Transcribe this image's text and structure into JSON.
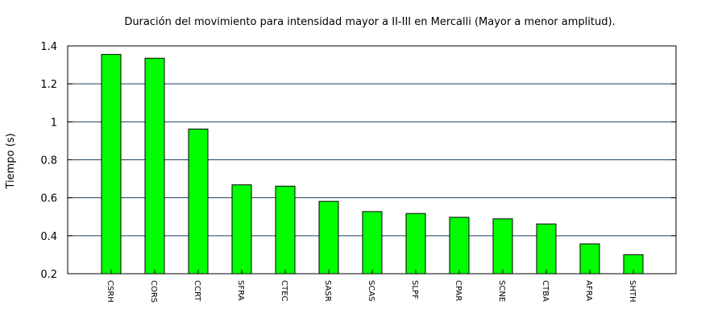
{
  "chart_data": {
    "type": "bar",
    "title": "Duración del movimiento para intensidad mayor a II-III en Mercalli (Mayor a menor amplitud).",
    "xlabel": "",
    "ylabel": "Tiempo (s)",
    "ylim": [
      0.2,
      1.4
    ],
    "yticks": [
      0.2,
      0.4,
      0.6,
      0.8,
      1,
      1.2,
      1.4
    ],
    "grid": true,
    "categories": [
      "CSRH",
      "CORS",
      "CCRT",
      "SFRA",
      "CTEC",
      "SASR",
      "SCAS",
      "SLPF",
      "CPAR",
      "SCNE",
      "CTBA",
      "AFRA",
      "SHTH"
    ],
    "values": [
      1.355,
      1.335,
      0.962,
      0.668,
      0.661,
      0.581,
      0.527,
      0.517,
      0.497,
      0.489,
      0.462,
      0.357,
      0.3
    ],
    "colors": {
      "bar": "#00ff00",
      "bar_stroke": "#000000",
      "grid": "#1f3f5f"
    }
  }
}
